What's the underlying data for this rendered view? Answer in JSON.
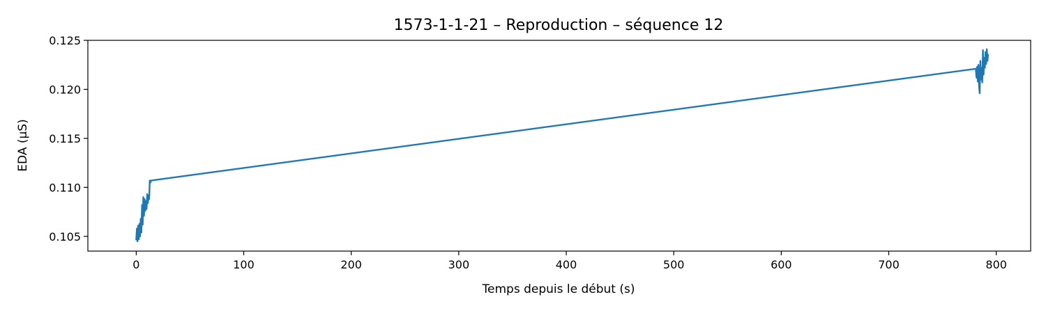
{
  "chart_data": {
    "type": "line",
    "title": "1573-1-1-21 – Reproduction – séquence 12",
    "xlabel": "Temps depuis le début (s)",
    "ylabel": "EDA (µS)",
    "xlim": [
      -45,
      832
    ],
    "ylim": [
      0.1035,
      0.125
    ],
    "xticks": [
      0,
      100,
      200,
      300,
      400,
      500,
      600,
      700,
      800
    ],
    "yticks": [
      0.105,
      0.11,
      0.115,
      0.12,
      0.125
    ],
    "ytick_labels": [
      "0.105",
      "0.110",
      "0.115",
      "0.120",
      "0.125"
    ],
    "grid": false,
    "line_color": "#1f77b4",
    "series": [
      {
        "x": [
          0,
          0.6,
          1.2,
          1.8,
          2.4,
          3.0,
          3.6,
          4.2,
          4.8,
          5.4,
          6.0,
          6.6,
          7.2,
          7.8,
          8.4,
          9.0,
          9.6,
          10.2,
          10.8,
          11.4,
          12.0,
          12.6,
          13.2,
          13.8,
          781.0,
          781.6,
          782.2,
          782.8,
          783.4,
          784.0,
          784.6,
          785.2,
          785.8,
          786.4,
          787.0,
          787.6,
          788.2,
          788.8,
          789.4,
          790.0,
          790.6,
          791.2,
          791.8,
          792.4
        ],
        "y": [
          0.1046,
          0.1058,
          0.1045,
          0.1061,
          0.1047,
          0.1063,
          0.105,
          0.1068,
          0.1054,
          0.1082,
          0.1062,
          0.109,
          0.1071,
          0.1088,
          0.1076,
          0.1086,
          0.1078,
          0.1093,
          0.1084,
          0.1092,
          0.1088,
          0.1107,
          0.1105,
          0.1107,
          0.1221,
          0.1212,
          0.1223,
          0.1208,
          0.1225,
          0.1203,
          0.1196,
          0.1229,
          0.121,
          0.1222,
          0.1207,
          0.124,
          0.1215,
          0.1232,
          0.1222,
          0.1238,
          0.1226,
          0.1241,
          0.1229,
          0.1236
        ]
      }
    ]
  }
}
